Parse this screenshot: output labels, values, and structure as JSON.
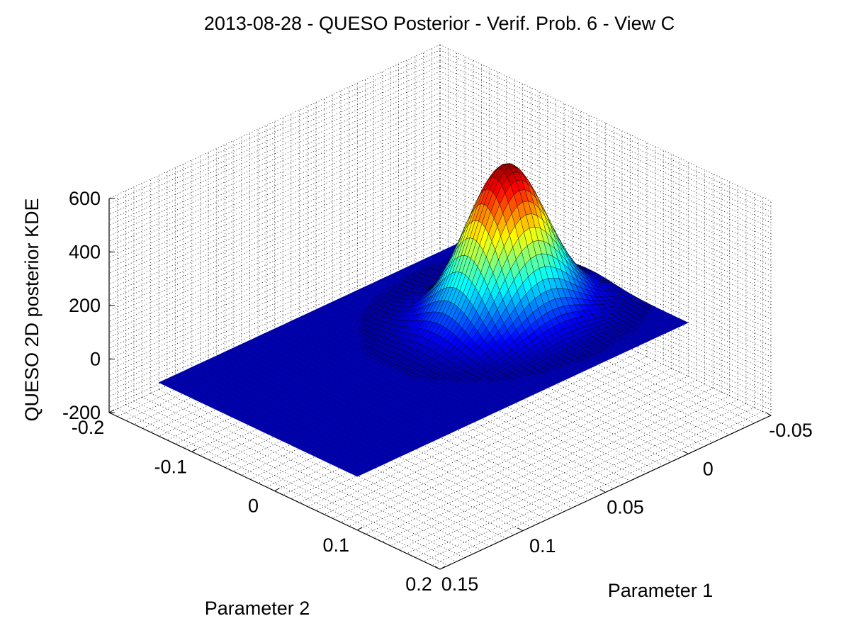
{
  "chart_data": {
    "type": "surface",
    "title": "2013-08-28 - QUESO Posterior - Verif. Prob. 6 - View C",
    "xlabel": "Parameter 1",
    "ylabel": "Parameter 2",
    "zlabel": "QUESO 2D posterior KDE",
    "xlim": [
      -0.05,
      0.15
    ],
    "ylim": [
      -0.2,
      0.2
    ],
    "zlim": [
      -200,
      600
    ],
    "x_ticks": [
      "-0.05",
      "0",
      "0.05",
      "0.1",
      "0.15"
    ],
    "y_ticks": [
      "-0.2",
      "-0.1",
      "0",
      "0.1",
      "0.2"
    ],
    "z_ticks": [
      "-200",
      "0",
      "200",
      "400",
      "600"
    ],
    "x_tick_values": [
      -0.05,
      0,
      0.05,
      0.1,
      0.15
    ],
    "y_tick_values": [
      -0.2,
      -0.1,
      0,
      0.1,
      0.2
    ],
    "z_tick_values": [
      -200,
      0,
      200,
      400,
      600
    ],
    "surface_x_range": [
      -0.05,
      0.15
    ],
    "surface_y_range": [
      -0.14,
      0.1
    ],
    "peak": {
      "x": 0.0,
      "y": -0.02,
      "z": 560
    },
    "spread": {
      "sx": 0.02,
      "sy": 0.03
    },
    "grid": "on",
    "colormap": "jet"
  }
}
